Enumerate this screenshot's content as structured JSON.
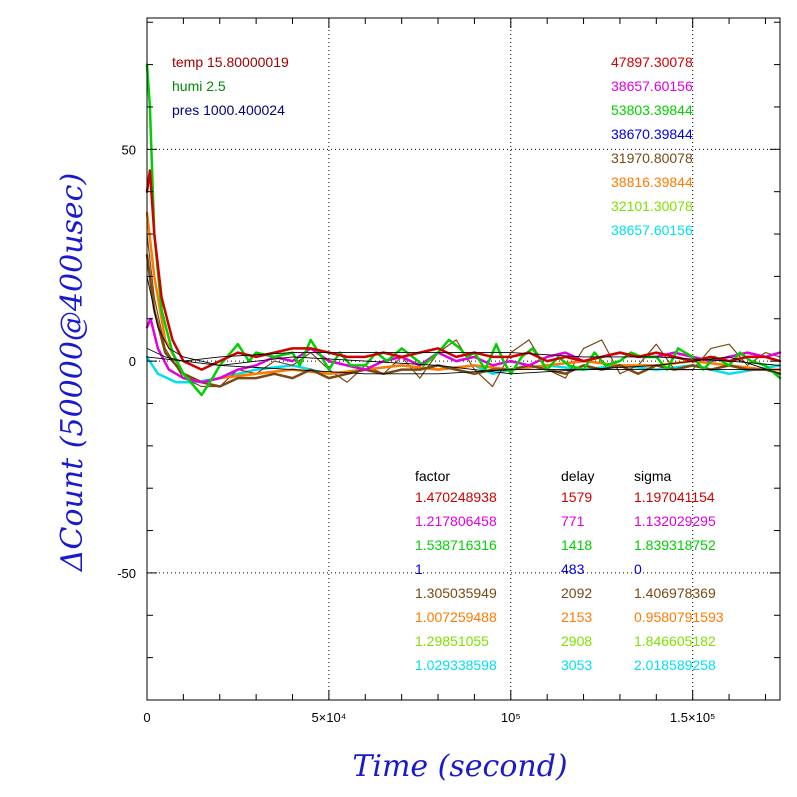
{
  "chart_data": {
    "type": "line",
    "xlabel": "Time (second)",
    "ylabel": "ΔCount (50000@400usec)",
    "xlim": [
      0,
      174000
    ],
    "ylim": [
      -80,
      81
    ],
    "x_ticks": [
      {
        "value": 0,
        "label": "0"
      },
      {
        "value": 50000,
        "label": "5×10⁴"
      },
      {
        "value": 100000,
        "label": "10⁵"
      },
      {
        "value": 150000,
        "label": "1.5×10⁵"
      }
    ],
    "y_ticks": [
      {
        "value": 50,
        "label": "50"
      },
      {
        "value": 0,
        "label": "0"
      },
      {
        "value": -50,
        "label": "-50"
      }
    ],
    "grid": true,
    "env": [
      {
        "text": "temp 15.80000019",
        "color": "#a00000"
      },
      {
        "text": "humi 2.5",
        "color": "#008a00"
      },
      {
        "text": "pres 1000.400024",
        "color": "#000080"
      }
    ],
    "counts": [
      {
        "text": "47897.30078",
        "color": "#d00000"
      },
      {
        "text": "38657.60156",
        "color": "#e000e0"
      },
      {
        "text": "53803.39844",
        "color": "#00d000"
      },
      {
        "text": "38670.39844",
        "color": "#0000e0"
      },
      {
        "text": "31970.80078",
        "color": "#7a4a14"
      },
      {
        "text": "38816.39844",
        "color": "#ff7a00"
      },
      {
        "text": "32101.30078",
        "color": "#80e000"
      },
      {
        "text": "38657.60156",
        "color": "#00e0f0"
      }
    ],
    "param_headers": [
      "factor",
      "delay",
      "sigma"
    ],
    "params": [
      {
        "factor": "1.470248938",
        "delay": "1579",
        "sigma": "1.197041154",
        "color": "#d00000"
      },
      {
        "factor": "1.217806458",
        "delay": "771",
        "sigma": "1.132029295",
        "color": "#e000e0"
      },
      {
        "factor": "1.538716316",
        "delay": "1418",
        "sigma": "1.839318752",
        "color": "#00d000"
      },
      {
        "factor": "1",
        "delay": "483",
        "sigma": "0",
        "color": "#0000e0"
      },
      {
        "factor": "1.305035949",
        "delay": "2092",
        "sigma": "1.406978369",
        "color": "#7a4a14"
      },
      {
        "factor": "1.007259488",
        "delay": "2153",
        "sigma": "0.9580791593",
        "color": "#ff7a00"
      },
      {
        "factor": "1.29851055",
        "delay": "2908",
        "sigma": "1.846605182",
        "color": "#80e000"
      },
      {
        "factor": "1.029338598",
        "delay": "3053",
        "sigma": "2.018589258",
        "color": "#00e0f0"
      }
    ],
    "series": [
      {
        "color": "#00e0f0",
        "width": 2.5,
        "x": [
          0,
          3000,
          8000,
          13000,
          20000,
          30000,
          40000,
          50000,
          60000,
          70000,
          80000,
          90000,
          95000,
          100000,
          110000,
          120000,
          130000,
          140000,
          150000,
          160000,
          174000
        ],
        "y": [
          1,
          -3,
          -5,
          -5,
          -4,
          -2,
          -1,
          -3,
          -2,
          -1,
          -2,
          -1,
          -3,
          -2,
          -1,
          -2,
          -1,
          -2,
          -1,
          -3,
          -1
        ]
      },
      {
        "color": "#7a4a14",
        "width": 1.2,
        "x": [
          0,
          2000,
          5000,
          10000,
          15000,
          20000,
          25000,
          30000,
          35000,
          40000,
          45000,
          50000,
          55000,
          60000,
          65000,
          70000,
          75000,
          80000,
          85000,
          90000,
          95000,
          100000,
          105000,
          110000,
          115000,
          120000,
          125000,
          130000,
          135000,
          140000,
          145000,
          150000,
          155000,
          160000,
          165000,
          170000,
          174000
        ],
        "y": [
          30,
          15,
          3,
          -4,
          -6,
          -6,
          -2,
          -3,
          0,
          -1,
          2,
          -2,
          -5,
          -1,
          -3,
          1,
          -4,
          2,
          5,
          -2,
          -6,
          2,
          5,
          -2,
          -4,
          3,
          5,
          -3,
          -1,
          4,
          -2,
          -2,
          3,
          4,
          -1,
          2,
          1
        ]
      },
      {
        "color": "#ff7a00",
        "width": 2.5,
        "x": [
          0,
          2000,
          5000,
          10000,
          15000,
          20000,
          30000,
          40000,
          50000,
          60000,
          70000,
          80000,
          90000,
          100000,
          110000,
          120000,
          130000,
          140000,
          150000,
          160000,
          170000,
          174000
        ],
        "y": [
          35,
          20,
          5,
          -3,
          -5,
          -4,
          -3,
          -2,
          -3,
          -2,
          -1,
          -2,
          -1,
          -2,
          -1,
          0,
          -1,
          -1,
          0,
          -1,
          -2,
          -2
        ]
      },
      {
        "color": "#7a4a14",
        "width": 2.5,
        "x": [
          0,
          2000,
          5000,
          10000,
          15000,
          20000,
          25000,
          30000,
          35000,
          40000,
          45000,
          50000,
          55000,
          60000,
          65000,
          70000,
          75000,
          80000,
          85000,
          90000,
          95000,
          100000,
          105000,
          110000,
          115000,
          120000,
          125000,
          130000,
          135000,
          140000,
          145000,
          150000,
          155000,
          160000,
          165000,
          170000,
          174000
        ],
        "y": [
          25,
          12,
          2,
          -3,
          -5,
          -6,
          -4,
          -4,
          -3,
          -4,
          -2,
          -4,
          -3,
          -2,
          -3,
          -2,
          -2,
          -1,
          -2,
          -3,
          -2,
          -2,
          -1,
          -2,
          -3,
          -1,
          -2,
          -1,
          -3,
          -1,
          -2,
          -1,
          -2,
          -1,
          -2,
          -2,
          -3
        ]
      },
      {
        "color": "#e000e0",
        "width": 2.5,
        "x": [
          0,
          1000,
          3000,
          6000,
          10000,
          15000,
          20000,
          25000,
          30000,
          35000,
          40000,
          45000,
          50000,
          55000,
          60000,
          65000,
          70000,
          75000,
          80000,
          85000,
          90000,
          95000,
          100000,
          105000,
          110000,
          115000,
          120000,
          125000,
          130000,
          135000,
          140000,
          145000,
          150000,
          155000,
          160000,
          165000,
          170000,
          174000
        ],
        "y": [
          8,
          10,
          3,
          -2,
          -4,
          -5,
          -4,
          -2,
          -1,
          1,
          0,
          3,
          0,
          -1,
          -2,
          0,
          1,
          -1,
          2,
          0,
          1,
          -1,
          0,
          -1,
          1,
          2,
          0,
          1,
          2,
          1,
          1,
          2,
          1,
          0,
          1,
          2,
          1,
          2
        ]
      },
      {
        "color": "#00d000",
        "width": 2.5,
        "x": [
          0,
          800,
          2000,
          4000,
          7000,
          10000,
          12000,
          15000,
          18000,
          20000,
          22000,
          25000,
          28000,
          30000,
          35000,
          40000,
          42000,
          45000,
          48000,
          50000,
          53000,
          56000,
          60000,
          63000,
          66000,
          70000,
          73000,
          76000,
          80000,
          83000,
          86000,
          88000,
          90000,
          93000,
          96000,
          98000,
          100000,
          103000,
          106000,
          110000,
          113000,
          116000,
          120000,
          123000,
          126000,
          130000,
          133000,
          136000,
          140000,
          143000,
          146000,
          150000,
          153000,
          156000,
          160000,
          163000,
          166000,
          170000,
          174000
        ],
        "y": [
          70,
          60,
          30,
          12,
          2,
          -3,
          -5,
          -8,
          -4,
          -1,
          1,
          4,
          0,
          2,
          1,
          2,
          -1,
          5,
          1,
          -2,
          2,
          -1,
          -1,
          2,
          0,
          3,
          1,
          -1,
          2,
          5,
          3,
          1,
          2,
          -2,
          4,
          0,
          -3,
          1,
          3,
          -2,
          1,
          -1,
          -2,
          2,
          -1,
          0,
          2,
          1,
          1,
          -2,
          3,
          1,
          -2,
          1,
          -1,
          2,
          0,
          -1,
          -4
        ]
      },
      {
        "color": "#d00000",
        "width": 2.5,
        "x": [
          0,
          800,
          2000,
          4000,
          7000,
          10000,
          15000,
          20000,
          25000,
          30000,
          35000,
          40000,
          45000,
          50000,
          55000,
          60000,
          65000,
          70000,
          75000,
          80000,
          85000,
          90000,
          95000,
          100000,
          105000,
          110000,
          115000,
          120000,
          125000,
          130000,
          135000,
          140000,
          145000,
          150000,
          155000,
          160000,
          165000,
          170000,
          174000
        ],
        "y": [
          40,
          45,
          30,
          15,
          5,
          0,
          -2,
          0,
          2,
          1,
          2,
          3,
          3,
          2,
          1,
          1,
          2,
          1,
          2,
          3,
          1,
          2,
          1,
          1,
          2,
          0,
          1,
          0,
          1,
          2,
          1,
          2,
          1,
          0,
          1,
          0,
          1,
          1,
          0
        ]
      },
      {
        "color": "#000000",
        "width": 0.9,
        "x": [
          0,
          3000,
          6000,
          10000,
          20000,
          40000,
          60000,
          80000,
          100000,
          120000,
          140000,
          160000,
          174000
        ],
        "y": [
          20,
          8,
          3,
          1,
          -1,
          -2,
          -3,
          -3,
          -2,
          -2,
          -2,
          -2,
          -2
        ]
      },
      {
        "color": "#000000",
        "width": 0.9,
        "x": [
          0,
          5000,
          10000,
          20000,
          40000,
          60000,
          80000,
          100000,
          120000,
          140000,
          160000,
          174000
        ],
        "y": [
          3,
          1,
          0,
          1,
          2,
          2,
          2,
          2,
          1,
          1,
          0,
          -1
        ]
      },
      {
        "color": "#000000",
        "width": 0.9,
        "x": [
          0,
          10000,
          20000,
          40000,
          60000,
          80000,
          100000,
          120000,
          140000,
          160000,
          174000
        ],
        "y": [
          1,
          0,
          -1,
          1,
          0,
          -1,
          -3,
          -2,
          -1,
          1,
          -3
        ]
      }
    ]
  }
}
